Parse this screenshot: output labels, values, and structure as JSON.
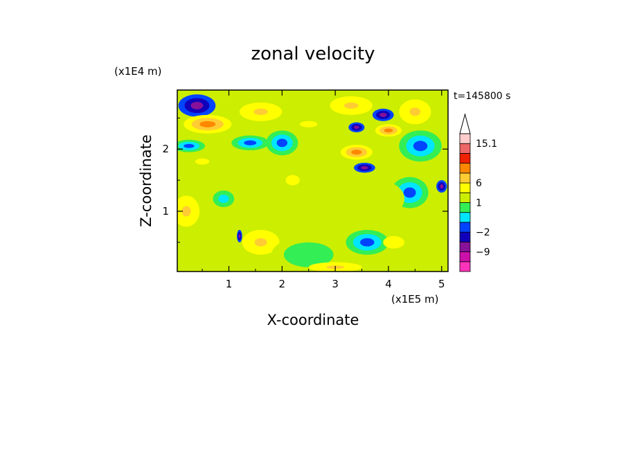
{
  "chart_data": {
    "type": "heatmap",
    "title": "zonal velocity",
    "xlabel": "X-coordinate",
    "ylabel": "Z-coordinate",
    "x_unit": "(x1E5 m)",
    "y_unit": "(x1E4 m)",
    "time_label": "t=145800 s",
    "xlim": [
      0.03,
      5.12
    ],
    "ylim": [
      0.03,
      2.95
    ],
    "x_ticks": [
      "1",
      "2",
      "3",
      "4",
      "5"
    ],
    "x_tick_values": [
      1,
      2,
      3,
      4,
      5
    ],
    "y_ticks": [
      "1",
      "2"
    ],
    "y_tick_values": [
      1,
      2
    ],
    "colorbar": {
      "levels": [
        -16,
        -12,
        -9,
        -5.5,
        -2,
        -1,
        0,
        1,
        3,
        6,
        8.5,
        11,
        13,
        15.1
      ],
      "labels": [
        "15.1",
        "6",
        "1",
        "−2",
        "−9"
      ],
      "label_values": [
        15.1,
        6,
        1,
        -2,
        -9
      ],
      "colors": [
        "#ff33bb",
        "#cc11aa",
        "#881199",
        "#1100bb",
        "#0044ff",
        "#00e5ff",
        "#33ee55",
        "#ccee00",
        "#ffff00",
        "#ffcc33",
        "#ff8800",
        "#ee2200",
        "#ee6666",
        "#ffcccc"
      ],
      "top_triangle_color": "#ffffff"
    },
    "field_note": "contour field estimated visually",
    "blobs": [
      {
        "x": 0.4,
        "z": 2.7,
        "v": -8,
        "rx": 0.35,
        "rz": 0.18
      },
      {
        "x": 0.6,
        "z": 2.4,
        "v": 9,
        "rx": 0.45,
        "rz": 0.15
      },
      {
        "x": 0.25,
        "z": 2.05,
        "v": -2,
        "rx": 0.3,
        "rz": 0.1
      },
      {
        "x": 0.5,
        "z": 1.8,
        "v": 3,
        "rx": 0.4,
        "rz": 0.15
      },
      {
        "x": 0.2,
        "z": 1.0,
        "v": 6,
        "rx": 0.25,
        "rz": 0.25
      },
      {
        "x": 0.9,
        "z": 1.2,
        "v": -0.5,
        "rx": 0.3,
        "rz": 0.2
      },
      {
        "x": 1.6,
        "z": 0.5,
        "v": 7,
        "rx": 0.35,
        "rz": 0.2
      },
      {
        "x": 1.2,
        "z": 0.6,
        "v": -8,
        "rx": 0.05,
        "rz": 0.1
      },
      {
        "x": 1.6,
        "z": 2.6,
        "v": 6,
        "rx": 0.4,
        "rz": 0.15
      },
      {
        "x": 1.4,
        "z": 2.1,
        "v": -1.5,
        "rx": 0.35,
        "rz": 0.12
      },
      {
        "x": 2.0,
        "z": 2.1,
        "v": -2,
        "rx": 0.3,
        "rz": 0.2
      },
      {
        "x": 2.5,
        "z": 2.4,
        "v": 3,
        "rx": 0.5,
        "rz": 0.15
      },
      {
        "x": 3.3,
        "z": 2.7,
        "v": 6,
        "rx": 0.4,
        "rz": 0.15
      },
      {
        "x": 3.4,
        "z": 2.35,
        "v": -8,
        "rx": 0.15,
        "rz": 0.08
      },
      {
        "x": 3.9,
        "z": 2.55,
        "v": -9,
        "rx": 0.2,
        "rz": 0.1
      },
      {
        "x": 4.0,
        "z": 2.3,
        "v": 9,
        "rx": 0.25,
        "rz": 0.1
      },
      {
        "x": 3.4,
        "z": 1.95,
        "v": 9,
        "rx": 0.3,
        "rz": 0.12
      },
      {
        "x": 3.55,
        "z": 1.7,
        "v": -9,
        "rx": 0.2,
        "rz": 0.08
      },
      {
        "x": 4.5,
        "z": 2.6,
        "v": 6,
        "rx": 0.3,
        "rz": 0.2
      },
      {
        "x": 4.6,
        "z": 2.05,
        "v": -2,
        "rx": 0.4,
        "rz": 0.25
      },
      {
        "x": 5.0,
        "z": 1.4,
        "v": -8,
        "rx": 0.1,
        "rz": 0.1
      },
      {
        "x": 4.4,
        "z": 1.3,
        "v": -2,
        "rx": 0.35,
        "rz": 0.25
      },
      {
        "x": 3.6,
        "z": 0.5,
        "v": -2,
        "rx": 0.4,
        "rz": 0.2
      },
      {
        "x": 3.8,
        "z": 1.2,
        "v": 1,
        "rx": 0.5,
        "rz": 0.3
      },
      {
        "x": 2.5,
        "z": 0.3,
        "v": 0,
        "rx": 0.7,
        "rz": 0.3
      },
      {
        "x": 2.2,
        "z": 1.5,
        "v": 3,
        "rx": 0.4,
        "rz": 0.25
      },
      {
        "x": 4.8,
        "z": 0.6,
        "v": 2,
        "rx": 0.3,
        "rz": 0.3
      },
      {
        "x": 3.0,
        "z": 0.1,
        "v": 6,
        "rx": 0.5,
        "rz": 0.08
      },
      {
        "x": 4.1,
        "z": 0.5,
        "v": 5,
        "rx": 0.2,
        "rz": 0.1
      }
    ]
  }
}
